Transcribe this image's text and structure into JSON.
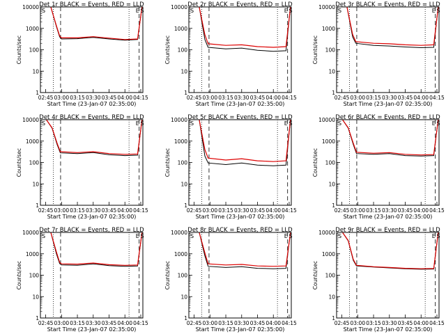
{
  "figure": {
    "xlabel": "Start Time (23-Jan-07 02:35:00)",
    "ylabel": "Counts/sec",
    "x_ticks": [
      "02:45",
      "03:00",
      "03:15",
      "03:30",
      "03:45",
      "04:00",
      "04:15"
    ],
    "y_ticks": [
      "1",
      "10",
      "100",
      "1000",
      "10000"
    ],
    "colors": {
      "events": "#000000",
      "lld": "#dd0000"
    }
  },
  "chart_data": [
    {
      "type": "line",
      "title": "Det 1r BLACK = Events, RED = LLD",
      "xlabel": "Start Time (23-Jan-07 02:35:00)",
      "ylabel": "Counts/sec",
      "x_range": [
        "02:40",
        "04:17"
      ],
      "ylim": [
        1,
        10000
      ],
      "y_scale": "log",
      "region_labels": [
        "S",
        "E",
        "S"
      ],
      "series": [
        {
          "color": "black",
          "values": [
            [
              2.83,
              10000
            ],
            [
              2.92,
              1200
            ],
            [
              2.97,
              400
            ],
            [
              3.0,
              320
            ],
            [
              3.25,
              330
            ],
            [
              3.5,
              380
            ],
            [
              3.75,
              320
            ],
            [
              4.0,
              280
            ],
            [
              4.2,
              300
            ],
            [
              4.27,
              10000
            ]
          ]
        },
        {
          "color": "red",
          "values": [
            [
              2.83,
              10000
            ],
            [
              2.92,
              1300
            ],
            [
              2.97,
              440
            ],
            [
              3.0,
              360
            ],
            [
              3.25,
              360
            ],
            [
              3.5,
              410
            ],
            [
              3.75,
              350
            ],
            [
              4.0,
              300
            ],
            [
              4.2,
              320
            ],
            [
              4.27,
              10000
            ]
          ]
        }
      ]
    },
    {
      "type": "line",
      "title": "Det 2r BLACK = Events, RED = LLD",
      "xlabel": "Start Time (23-Jan-07 02:35:00)",
      "ylabel": "Counts/sec",
      "x_range": [
        "02:40",
        "04:17"
      ],
      "ylim": [
        1,
        10000
      ],
      "y_scale": "log",
      "region_labels": [
        "S",
        "E",
        "S"
      ],
      "series": [
        {
          "color": "black",
          "values": [
            [
              2.83,
              10000
            ],
            [
              2.92,
              300
            ],
            [
              2.97,
              130
            ],
            [
              3.25,
              110
            ],
            [
              3.5,
              120
            ],
            [
              3.75,
              95
            ],
            [
              4.0,
              85
            ],
            [
              4.2,
              90
            ],
            [
              4.27,
              10000
            ]
          ]
        },
        {
          "color": "red",
          "values": [
            [
              2.83,
              10000
            ],
            [
              2.92,
              500
            ],
            [
              2.97,
              190
            ],
            [
              3.25,
              160
            ],
            [
              3.5,
              170
            ],
            [
              3.75,
              140
            ],
            [
              4.0,
              130
            ],
            [
              4.2,
              140
            ],
            [
              4.27,
              10000
            ]
          ]
        }
      ]
    },
    {
      "type": "line",
      "title": "Det 3r BLACK = Events, RED = LLD",
      "xlabel": "Start Time (23-Jan-07 02:35:00)",
      "ylabel": "Counts/sec",
      "x_range": [
        "02:40",
        "04:17"
      ],
      "ylim": [
        1,
        10000
      ],
      "y_scale": "log",
      "region_labels": [
        "S",
        "E",
        "S"
      ],
      "series": [
        {
          "color": "black",
          "values": [
            [
              2.83,
              10000
            ],
            [
              2.92,
              400
            ],
            [
              2.97,
              200
            ],
            [
              3.25,
              160
            ],
            [
              3.5,
              150
            ],
            [
              3.75,
              135
            ],
            [
              4.0,
              125
            ],
            [
              4.2,
              130
            ],
            [
              4.27,
              10000
            ]
          ]
        },
        {
          "color": "red",
          "values": [
            [
              2.83,
              10000
            ],
            [
              2.92,
              520
            ],
            [
              2.97,
              240
            ],
            [
              3.25,
              200
            ],
            [
              3.5,
              190
            ],
            [
              3.75,
              170
            ],
            [
              4.0,
              160
            ],
            [
              4.2,
              170
            ],
            [
              4.27,
              10000
            ]
          ]
        }
      ]
    },
    {
      "type": "line",
      "title": "Det 4r BLACK = Events, RED = LLD",
      "xlabel": "Start Time (23-Jan-07 02:35:00)",
      "ylabel": "Counts/sec",
      "x_range": [
        "02:40",
        "04:17"
      ],
      "ylim": [
        1,
        10000
      ],
      "y_scale": "log",
      "region_labels": [
        "S",
        "E",
        "S"
      ],
      "series": [
        {
          "color": "black",
          "values": [
            [
              2.76,
              10000
            ],
            [
              2.85,
              4000
            ],
            [
              2.93,
              700
            ],
            [
              2.98,
              280
            ],
            [
              3.25,
              260
            ],
            [
              3.5,
              290
            ],
            [
              3.75,
              230
            ],
            [
              4.0,
              210
            ],
            [
              4.2,
              220
            ],
            [
              4.27,
              10000
            ]
          ]
        },
        {
          "color": "red",
          "values": [
            [
              2.76,
              10000
            ],
            [
              2.85,
              4200
            ],
            [
              2.93,
              800
            ],
            [
              2.98,
              320
            ],
            [
              3.25,
              290
            ],
            [
              3.5,
              320
            ],
            [
              3.75,
              260
            ],
            [
              4.0,
              240
            ],
            [
              4.2,
              250
            ],
            [
              4.27,
              10000
            ]
          ]
        }
      ]
    },
    {
      "type": "line",
      "title": "Det 5r BLACK = Events, RED = LLD",
      "xlabel": "Start Time (23-Jan-07 02:35:00)",
      "ylabel": "Counts/sec",
      "x_range": [
        "02:40",
        "04:17"
      ],
      "ylim": [
        1,
        10000
      ],
      "y_scale": "log",
      "region_labels": [
        "S",
        "E",
        "S"
      ],
      "series": [
        {
          "color": "black",
          "values": [
            [
              2.83,
              10000
            ],
            [
              2.92,
              200
            ],
            [
              2.97,
              95
            ],
            [
              3.25,
              80
            ],
            [
              3.5,
              95
            ],
            [
              3.75,
              75
            ],
            [
              4.0,
              70
            ],
            [
              4.2,
              75
            ],
            [
              4.27,
              10000
            ]
          ]
        },
        {
          "color": "red",
          "values": [
            [
              2.83,
              10000
            ],
            [
              2.92,
              400
            ],
            [
              2.97,
              160
            ],
            [
              3.25,
              130
            ],
            [
              3.5,
              150
            ],
            [
              3.75,
              120
            ],
            [
              4.0,
              110
            ],
            [
              4.2,
              120
            ],
            [
              4.27,
              10000
            ]
          ]
        }
      ]
    },
    {
      "type": "line",
      "title": "Det 6r BLACK = Events, RED = LLD",
      "xlabel": "Start Time (23-Jan-07 02:35:00)",
      "ylabel": "Counts/sec",
      "x_range": [
        "02:40",
        "04:17"
      ],
      "ylim": [
        1,
        10000
      ],
      "y_scale": "log",
      "region_labels": [
        "S",
        "E",
        "S"
      ],
      "series": [
        {
          "color": "black",
          "values": [
            [
              2.76,
              10000
            ],
            [
              2.85,
              4000
            ],
            [
              2.93,
              700
            ],
            [
              2.98,
              260
            ],
            [
              3.25,
              240
            ],
            [
              3.5,
              260
            ],
            [
              3.75,
              210
            ],
            [
              4.0,
              200
            ],
            [
              4.2,
              210
            ],
            [
              4.27,
              10000
            ]
          ]
        },
        {
          "color": "red",
          "values": [
            [
              2.76,
              10000
            ],
            [
              2.85,
              4200
            ],
            [
              2.93,
              800
            ],
            [
              2.98,
              300
            ],
            [
              3.25,
              270
            ],
            [
              3.5,
              290
            ],
            [
              3.75,
              240
            ],
            [
              4.0,
              225
            ],
            [
              4.2,
              235
            ],
            [
              4.27,
              10000
            ]
          ]
        }
      ]
    },
    {
      "type": "line",
      "title": "Det 7r BLACK = Events, RED = LLD",
      "xlabel": "Start Time (23-Jan-07 02:35:00)",
      "ylabel": "Counts/sec",
      "x_range": [
        "02:40",
        "04:17"
      ],
      "ylim": [
        1,
        10000
      ],
      "y_scale": "log",
      "region_labels": [
        "S",
        "E",
        "S"
      ],
      "series": [
        {
          "color": "black",
          "values": [
            [
              2.83,
              10000
            ],
            [
              2.92,
              1000
            ],
            [
              2.97,
              350
            ],
            [
              3.0,
              300
            ],
            [
              3.25,
              290
            ],
            [
              3.5,
              340
            ],
            [
              3.75,
              280
            ],
            [
              4.0,
              260
            ],
            [
              4.2,
              270
            ],
            [
              4.27,
              10000
            ]
          ]
        },
        {
          "color": "red",
          "values": [
            [
              2.83,
              10000
            ],
            [
              2.92,
              1200
            ],
            [
              2.97,
              400
            ],
            [
              3.0,
              340
            ],
            [
              3.25,
              330
            ],
            [
              3.5,
              370
            ],
            [
              3.75,
              310
            ],
            [
              4.0,
              290
            ],
            [
              4.2,
              300
            ],
            [
              4.27,
              10000
            ]
          ]
        }
      ]
    },
    {
      "type": "line",
      "title": "Det 8r BLACK = Events, RED = LLD",
      "xlabel": "Start Time (23-Jan-07 02:35:00)",
      "ylabel": "Counts/sec",
      "x_range": [
        "02:40",
        "04:17"
      ],
      "ylim": [
        1,
        10000
      ],
      "y_scale": "log",
      "region_labels": [
        "S",
        "E",
        "S"
      ],
      "series": [
        {
          "color": "black",
          "values": [
            [
              2.83,
              10000
            ],
            [
              2.92,
              800
            ],
            [
              2.97,
              260
            ],
            [
              3.25,
              230
            ],
            [
              3.5,
              250
            ],
            [
              3.75,
              210
            ],
            [
              4.0,
              200
            ],
            [
              4.2,
              210
            ],
            [
              4.27,
              10000
            ]
          ]
        },
        {
          "color": "red",
          "values": [
            [
              2.83,
              10000
            ],
            [
              2.92,
              1100
            ],
            [
              2.97,
              340
            ],
            [
              3.25,
              300
            ],
            [
              3.5,
              320
            ],
            [
              3.75,
              270
            ],
            [
              4.0,
              260
            ],
            [
              4.2,
              270
            ],
            [
              4.27,
              10000
            ]
          ]
        }
      ]
    },
    {
      "type": "line",
      "title": "Det 9r BLACK = Events, RED = LLD",
      "xlabel": "Start Time (23-Jan-07 02:35:00)",
      "ylabel": "Counts/sec",
      "x_range": [
        "02:40",
        "04:17"
      ],
      "ylim": [
        1,
        10000
      ],
      "y_scale": "log",
      "region_labels": [
        "S",
        "E",
        "S"
      ],
      "series": [
        {
          "color": "black",
          "values": [
            [
              2.76,
              10000
            ],
            [
              2.85,
              4000
            ],
            [
              2.93,
              500
            ],
            [
              2.98,
              270
            ],
            [
              3.25,
              240
            ],
            [
              3.5,
              220
            ],
            [
              3.75,
              200
            ],
            [
              4.0,
              190
            ],
            [
              4.2,
              195
            ],
            [
              4.27,
              10000
            ]
          ]
        },
        {
          "color": "red",
          "values": [
            [
              2.76,
              10000
            ],
            [
              2.85,
              4200
            ],
            [
              2.93,
              550
            ],
            [
              2.98,
              290
            ],
            [
              3.25,
              250
            ],
            [
              3.5,
              230
            ],
            [
              3.75,
              210
            ],
            [
              4.0,
              200
            ],
            [
              4.2,
              205
            ],
            [
              4.27,
              10000
            ]
          ]
        }
      ]
    }
  ]
}
